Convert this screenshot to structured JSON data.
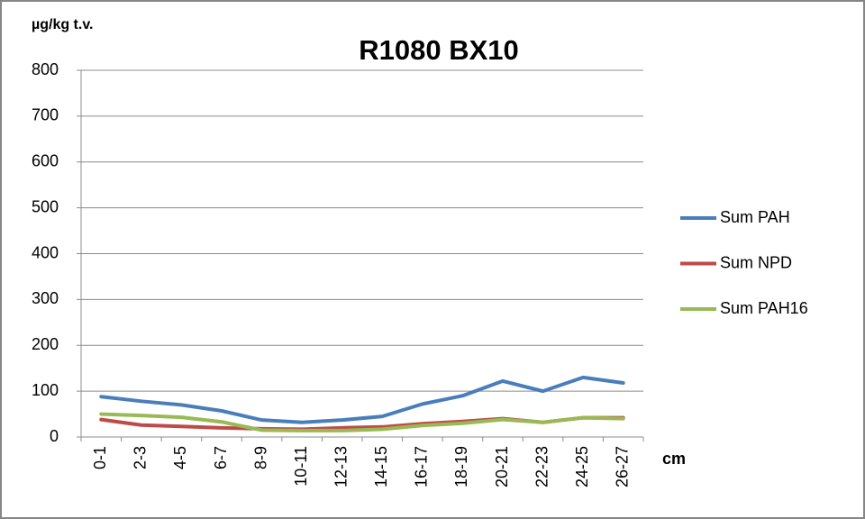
{
  "chart_data": {
    "type": "line",
    "title": "R1080 BX10",
    "y_label": "µg/kg t.v.",
    "x_label": "cm",
    "categories": [
      "0-1",
      "2-3",
      "4-5",
      "6-7",
      "8-9",
      "10-11",
      "12-13",
      "14-15",
      "16-17",
      "18-19",
      "20-21",
      "22-23",
      "24-25",
      "26-27"
    ],
    "series": [
      {
        "name": "Sum PAH",
        "color": "#4a7ebb",
        "values": [
          88,
          78,
          70,
          57,
          37,
          32,
          37,
          45,
          72,
          90,
          122,
          100,
          130,
          118
        ]
      },
      {
        "name": "Sum NPD",
        "color": "#be4b48",
        "values": [
          38,
          26,
          23,
          20,
          18,
          17,
          20,
          22,
          29,
          34,
          40,
          32,
          42,
          42
        ]
      },
      {
        "name": "Sum PAH16",
        "color": "#98b954",
        "values": [
          50,
          47,
          43,
          33,
          15,
          14,
          14,
          17,
          25,
          30,
          38,
          32,
          42,
          40
        ]
      }
    ],
    "ylim": [
      0,
      800
    ],
    "yticks": [
      0,
      100,
      200,
      300,
      400,
      500,
      600,
      700,
      800
    ],
    "grid": true,
    "legend": "right"
  }
}
